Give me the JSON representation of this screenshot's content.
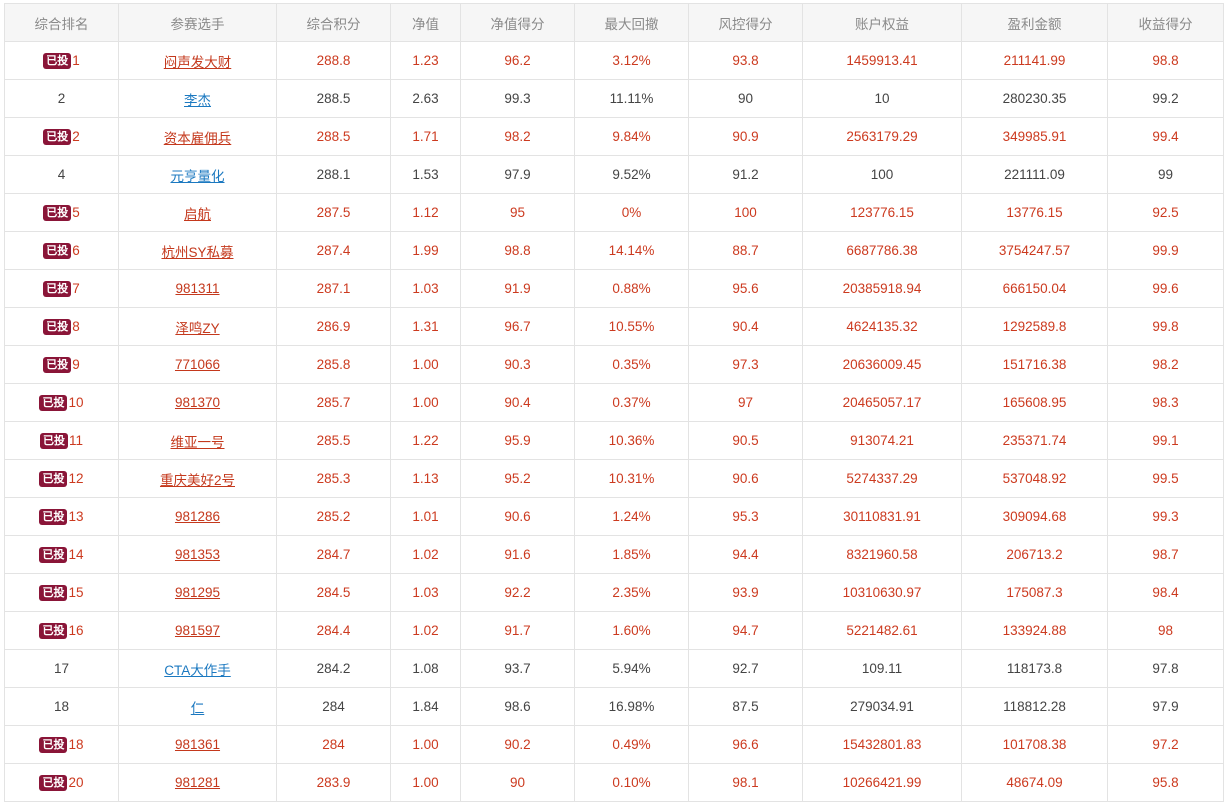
{
  "headers": [
    "综合排名",
    "参赛选手",
    "综合积分",
    "净值",
    "净值得分",
    "最大回撤",
    "风控得分",
    "账户权益",
    "盈利金额",
    "收益得分"
  ],
  "badge_label": "已投",
  "colors": {
    "highlight_text": "#cc3a1f",
    "normal_text": "#444444",
    "link_blue": "#1c79c0",
    "badge_bg": "#8a1538"
  },
  "rows": [
    {
      "badge": true,
      "rank": "1",
      "name": "闷声发大财",
      "score": "288.8",
      "nav": "1.23",
      "nav_score": "96.2",
      "max_drawdown": "3.12%",
      "risk_score": "93.8",
      "equity": "1459913.41",
      "profit": "211141.99",
      "return_score": "98.8"
    },
    {
      "badge": false,
      "rank": "2",
      "name": "李杰",
      "score": "288.5",
      "nav": "2.63",
      "nav_score": "99.3",
      "max_drawdown": "11.11%",
      "risk_score": "90",
      "equity": "10",
      "profit": "280230.35",
      "return_score": "99.2"
    },
    {
      "badge": true,
      "rank": "2",
      "name": "资本雇佣兵",
      "score": "288.5",
      "nav": "1.71",
      "nav_score": "98.2",
      "max_drawdown": "9.84%",
      "risk_score": "90.9",
      "equity": "2563179.29",
      "profit": "349985.91",
      "return_score": "99.4"
    },
    {
      "badge": false,
      "rank": "4",
      "name": "元亨量化",
      "score": "288.1",
      "nav": "1.53",
      "nav_score": "97.9",
      "max_drawdown": "9.52%",
      "risk_score": "91.2",
      "equity": "100",
      "profit": "221111.09",
      "return_score": "99"
    },
    {
      "badge": true,
      "rank": "5",
      "name": "启航",
      "score": "287.5",
      "nav": "1.12",
      "nav_score": "95",
      "max_drawdown": "0%",
      "risk_score": "100",
      "equity": "123776.15",
      "profit": "13776.15",
      "return_score": "92.5"
    },
    {
      "badge": true,
      "rank": "6",
      "name": "杭州SY私募",
      "score": "287.4",
      "nav": "1.99",
      "nav_score": "98.8",
      "max_drawdown": "14.14%",
      "risk_score": "88.7",
      "equity": "6687786.38",
      "profit": "3754247.57",
      "return_score": "99.9"
    },
    {
      "badge": true,
      "rank": "7",
      "name": "981311",
      "score": "287.1",
      "nav": "1.03",
      "nav_score": "91.9",
      "max_drawdown": "0.88%",
      "risk_score": "95.6",
      "equity": "20385918.94",
      "profit": "666150.04",
      "return_score": "99.6"
    },
    {
      "badge": true,
      "rank": "8",
      "name": "泽鸣ZY",
      "score": "286.9",
      "nav": "1.31",
      "nav_score": "96.7",
      "max_drawdown": "10.55%",
      "risk_score": "90.4",
      "equity": "4624135.32",
      "profit": "1292589.8",
      "return_score": "99.8"
    },
    {
      "badge": true,
      "rank": "9",
      "name": "771066",
      "score": "285.8",
      "nav": "1.00",
      "nav_score": "90.3",
      "max_drawdown": "0.35%",
      "risk_score": "97.3",
      "equity": "20636009.45",
      "profit": "151716.38",
      "return_score": "98.2"
    },
    {
      "badge": true,
      "rank": "10",
      "name": "981370",
      "score": "285.7",
      "nav": "1.00",
      "nav_score": "90.4",
      "max_drawdown": "0.37%",
      "risk_score": "97",
      "equity": "20465057.17",
      "profit": "165608.95",
      "return_score": "98.3"
    },
    {
      "badge": true,
      "rank": "11",
      "name": "维亚一号",
      "score": "285.5",
      "nav": "1.22",
      "nav_score": "95.9",
      "max_drawdown": "10.36%",
      "risk_score": "90.5",
      "equity": "913074.21",
      "profit": "235371.74",
      "return_score": "99.1"
    },
    {
      "badge": true,
      "rank": "12",
      "name": "重庆美好2号",
      "score": "285.3",
      "nav": "1.13",
      "nav_score": "95.2",
      "max_drawdown": "10.31%",
      "risk_score": "90.6",
      "equity": "5274337.29",
      "profit": "537048.92",
      "return_score": "99.5"
    },
    {
      "badge": true,
      "rank": "13",
      "name": "981286",
      "score": "285.2",
      "nav": "1.01",
      "nav_score": "90.6",
      "max_drawdown": "1.24%",
      "risk_score": "95.3",
      "equity": "30110831.91",
      "profit": "309094.68",
      "return_score": "99.3"
    },
    {
      "badge": true,
      "rank": "14",
      "name": "981353",
      "score": "284.7",
      "nav": "1.02",
      "nav_score": "91.6",
      "max_drawdown": "1.85%",
      "risk_score": "94.4",
      "equity": "8321960.58",
      "profit": "206713.2",
      "return_score": "98.7"
    },
    {
      "badge": true,
      "rank": "15",
      "name": "981295",
      "score": "284.5",
      "nav": "1.03",
      "nav_score": "92.2",
      "max_drawdown": "2.35%",
      "risk_score": "93.9",
      "equity": "10310630.97",
      "profit": "175087.3",
      "return_score": "98.4"
    },
    {
      "badge": true,
      "rank": "16",
      "name": "981597",
      "score": "284.4",
      "nav": "1.02",
      "nav_score": "91.7",
      "max_drawdown": "1.60%",
      "risk_score": "94.7",
      "equity": "5221482.61",
      "profit": "133924.88",
      "return_score": "98"
    },
    {
      "badge": false,
      "rank": "17",
      "name": "CTA大作手",
      "score": "284.2",
      "nav": "1.08",
      "nav_score": "93.7",
      "max_drawdown": "5.94%",
      "risk_score": "92.7",
      "equity": "109.11",
      "profit": "118173.8",
      "return_score": "97.8"
    },
    {
      "badge": false,
      "rank": "18",
      "name": "仁",
      "score": "284",
      "nav": "1.84",
      "nav_score": "98.6",
      "max_drawdown": "16.98%",
      "risk_score": "87.5",
      "equity": "279034.91",
      "profit": "118812.28",
      "return_score": "97.9"
    },
    {
      "badge": true,
      "rank": "18",
      "name": "981361",
      "score": "284",
      "nav": "1.00",
      "nav_score": "90.2",
      "max_drawdown": "0.49%",
      "risk_score": "96.6",
      "equity": "15432801.83",
      "profit": "101708.38",
      "return_score": "97.2"
    },
    {
      "badge": true,
      "rank": "20",
      "name": "981281",
      "score": "283.9",
      "nav": "1.00",
      "nav_score": "90",
      "max_drawdown": "0.10%",
      "risk_score": "98.1",
      "equity": "10266421.99",
      "profit": "48674.09",
      "return_score": "95.8"
    }
  ]
}
